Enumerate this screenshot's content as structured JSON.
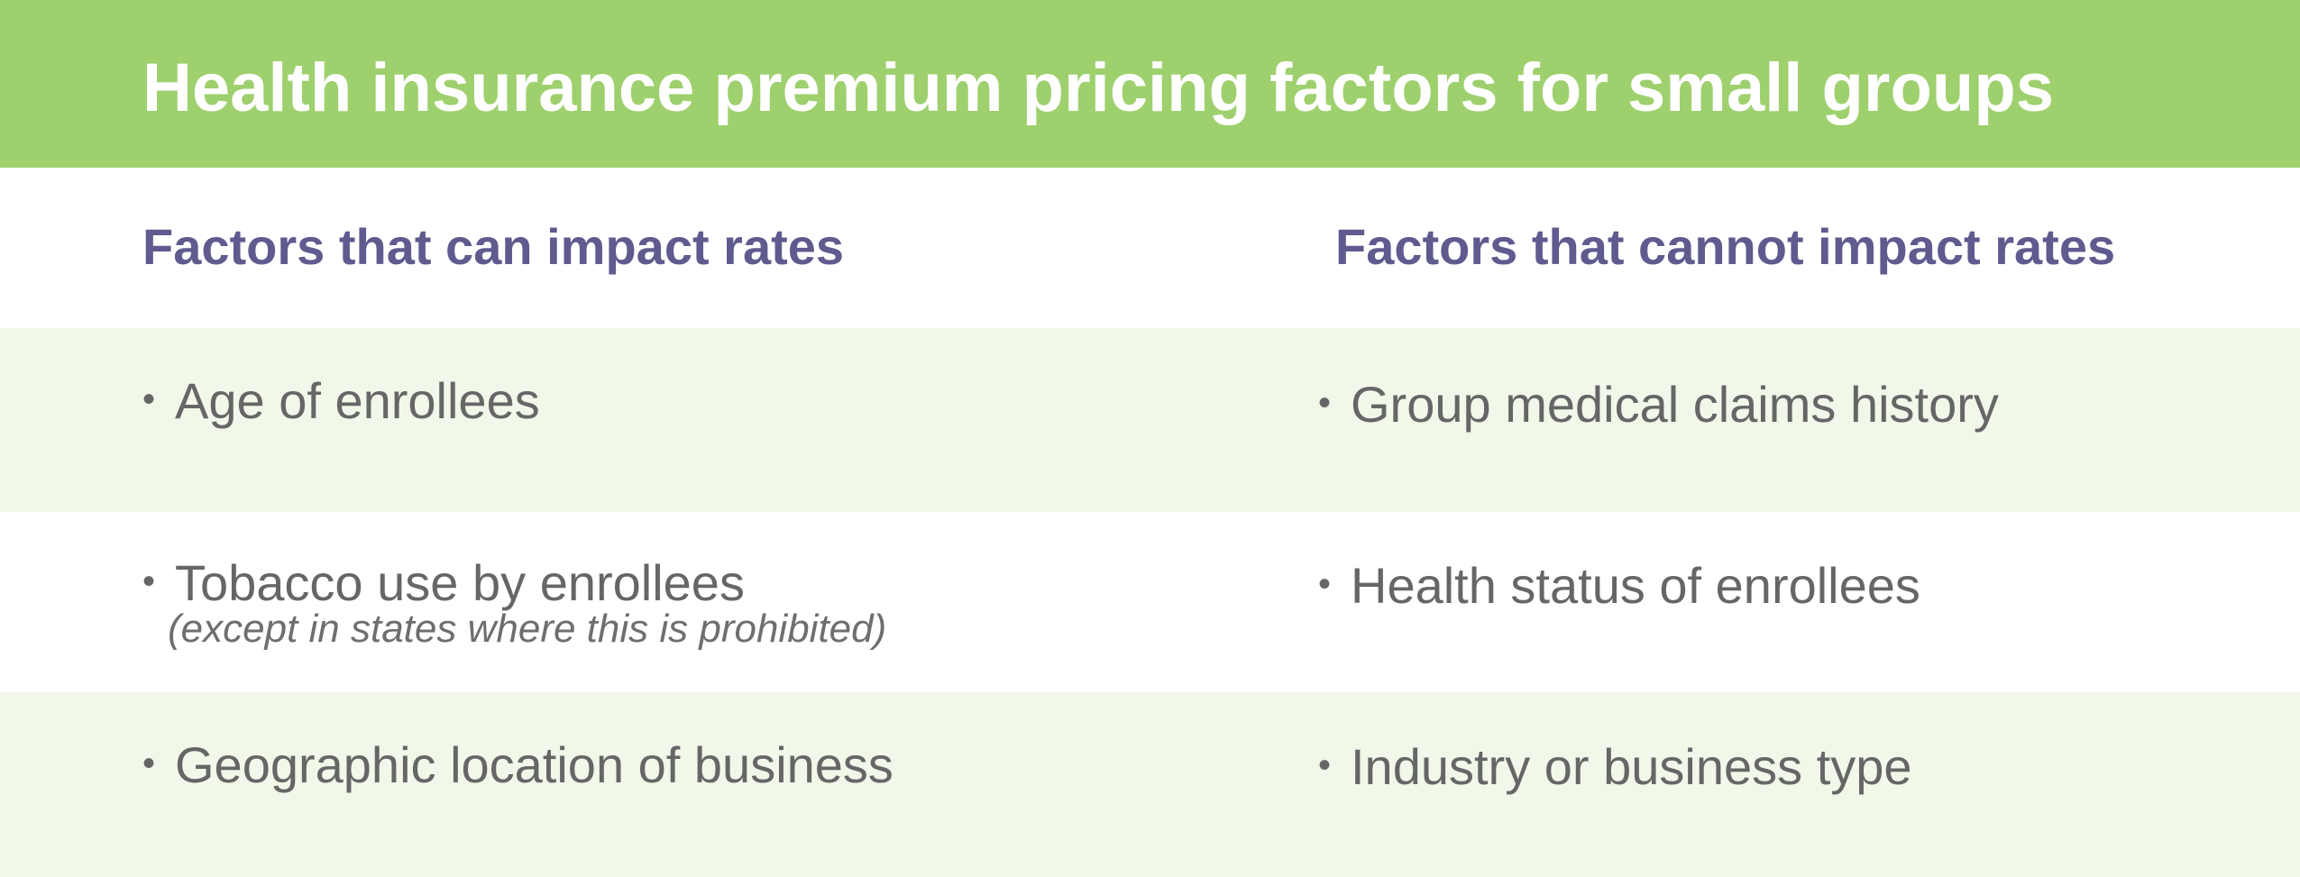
{
  "title": "Health insurance premium pricing factors for small groups",
  "columns": {
    "left_heading": "Factors that can impact rates",
    "right_heading": "Factors that cannot impact rates"
  },
  "bullet": "•",
  "rows": [
    {
      "left": "Age of enrollees",
      "right": "Group medical claims history"
    },
    {
      "left": "Tobacco use by enrollees",
      "left_note": "(except in states where this is prohibited)",
      "right": "Health status of enrollees"
    },
    {
      "left": "Geographic location of business",
      "right": "Industry or business type"
    }
  ],
  "colors": {
    "banner": "#9ed06e",
    "heading": "#5f5b8f",
    "row_tint": "#f1f7e9",
    "text": "#666666"
  }
}
